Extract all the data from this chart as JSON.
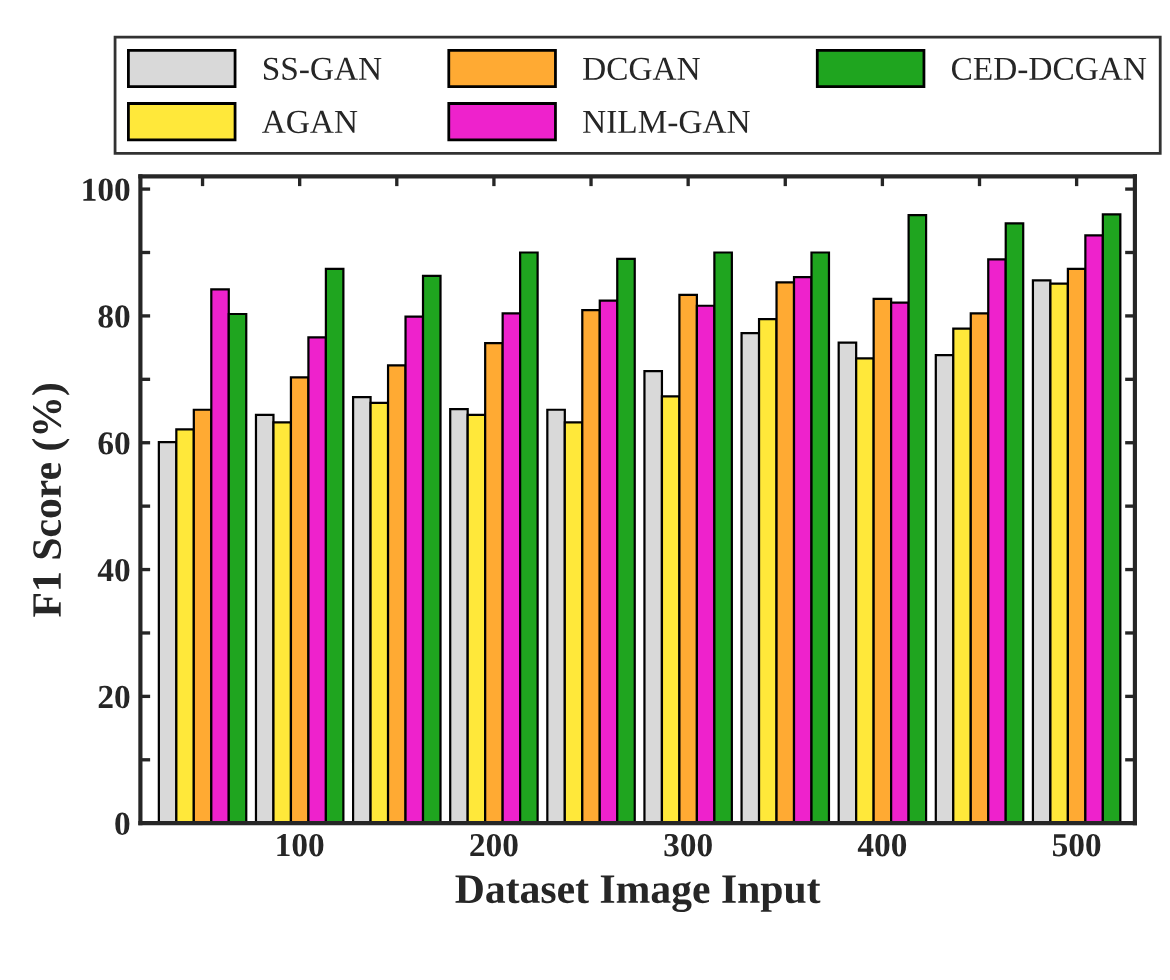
{
  "chart_data": {
    "type": "bar",
    "xlabel": "Dataset Image Input",
    "ylabel": "F1 Score (%)",
    "x": [
      50,
      100,
      150,
      200,
      250,
      300,
      350,
      400,
      450,
      500
    ],
    "series": [
      {
        "name": "SS-GAN",
        "color": "#d9d9d9",
        "values": [
          60.1,
          64.4,
          67.2,
          65.3,
          65.2,
          71.3,
          77.3,
          75.8,
          73.8,
          85.6
        ]
      },
      {
        "name": "AGAN",
        "color": "#ffe83a",
        "values": [
          62.1,
          63.2,
          66.3,
          64.4,
          63.2,
          67.3,
          79.5,
          73.3,
          78.0,
          85.1
        ]
      },
      {
        "name": "DCGAN",
        "color": "#ffaa33",
        "values": [
          65.2,
          70.3,
          72.2,
          75.7,
          80.9,
          83.3,
          85.3,
          82.7,
          80.4,
          87.4
        ]
      },
      {
        "name": "NILM-GAN",
        "color": "#ee22cc",
        "values": [
          84.2,
          76.6,
          79.9,
          80.4,
          82.4,
          81.6,
          86.1,
          82.1,
          88.9,
          92.7
        ]
      },
      {
        "name": "CED-DCGAN",
        "color": "#1fa51f",
        "values": [
          80.3,
          87.4,
          86.3,
          90,
          89,
          90,
          90.0,
          95.9,
          94.6,
          96.0
        ]
      }
    ],
    "xlim": [
      18,
      530
    ],
    "ylim": [
      0,
      102
    ],
    "xticks": [
      {
        "value": 50,
        "label": null
      },
      100,
      {
        "value": 150,
        "label": null
      },
      200,
      {
        "value": 250,
        "label": null
      },
      300,
      {
        "value": 350,
        "label": null
      },
      400,
      {
        "value": 450,
        "label": null
      },
      500
    ],
    "yticks": [
      0,
      {
        "value": 10,
        "label": null
      },
      20,
      {
        "value": 30,
        "label": null
      },
      40,
      {
        "value": 50,
        "label": null
      },
      60,
      {
        "value": 70,
        "label": null
      },
      80,
      {
        "value": 90,
        "label": null
      },
      100
    ],
    "legend": "top",
    "grid": false
  }
}
